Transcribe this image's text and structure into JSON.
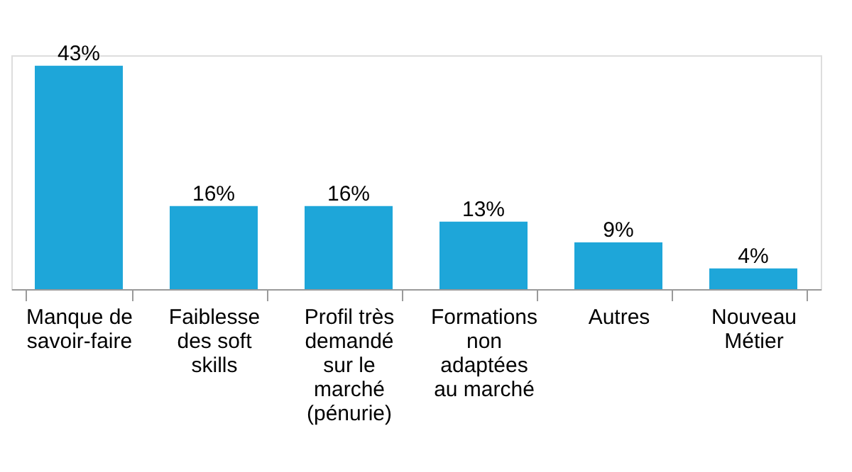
{
  "chart_data": {
    "type": "bar",
    "categories": [
      "Manque de\nsavoir-faire",
      "Faiblesse\ndes soft\nskills",
      "Profil très\ndemandé\nsur le\nmarché\n(pénurie)",
      "Formations\nnon\nadaptées\nau marché",
      "Autres",
      "Nouveau\nMétier"
    ],
    "values": [
      43,
      16,
      16,
      13,
      9,
      4
    ],
    "value_labels": [
      "43%",
      "16%",
      "16%",
      "13%",
      "9%",
      "4%"
    ],
    "color": "#1ea6d9",
    "grid": false
  }
}
